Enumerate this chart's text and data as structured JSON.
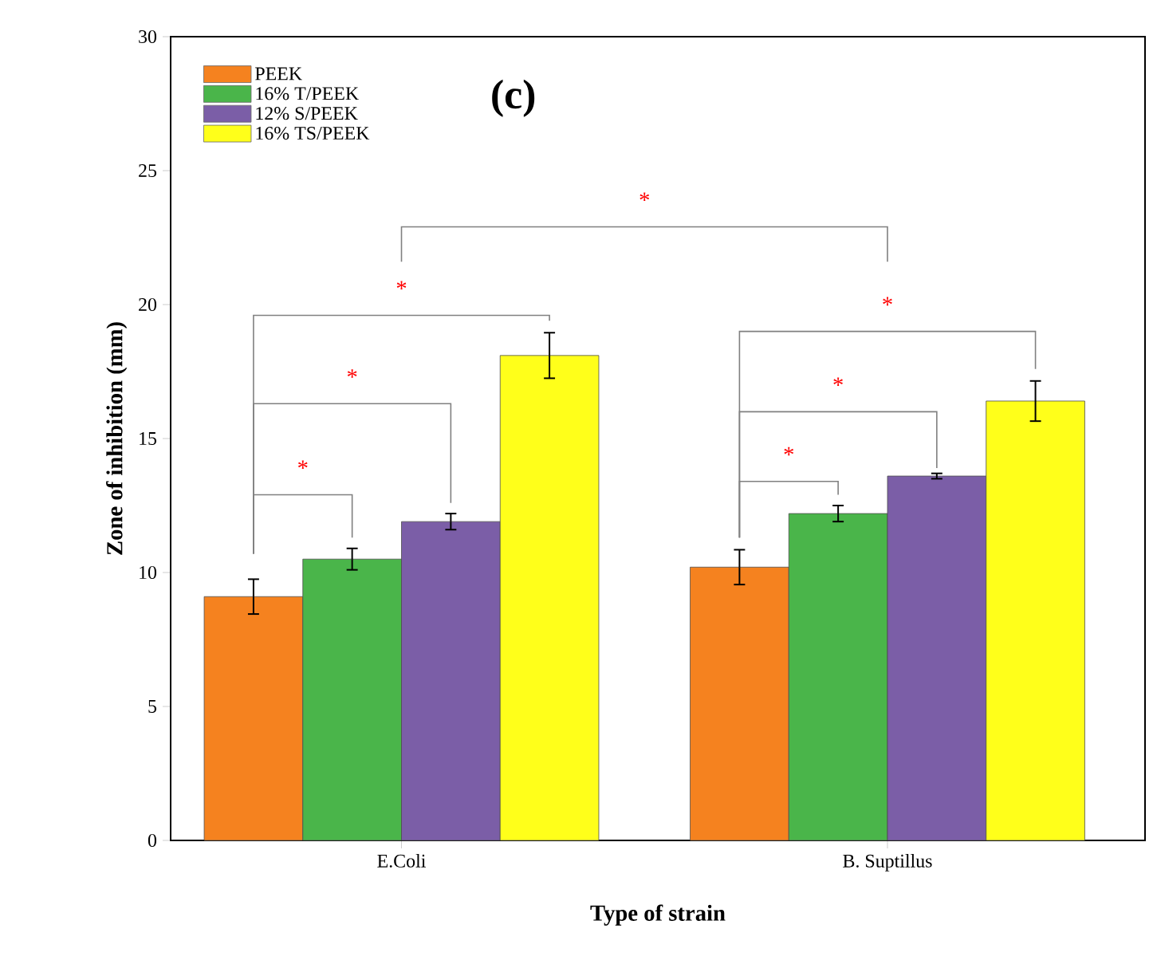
{
  "chart_data": {
    "type": "bar",
    "xlabel": "Type of strain",
    "ylabel": "Zone of inhibition (mm)",
    "categories": [
      "E.Coli",
      "B. Suptillus"
    ],
    "series": [
      {
        "name": "PEEK",
        "color": "#f5821f",
        "values": [
          9.1,
          10.2
        ],
        "errors": [
          0.65,
          0.65
        ]
      },
      {
        "name": "16% T/PEEK",
        "color": "#4ab54a",
        "values": [
          10.5,
          12.2
        ],
        "errors": [
          0.4,
          0.3
        ]
      },
      {
        "name": "12% S/PEEK",
        "color": "#7b5ea7",
        "values": [
          11.9,
          13.6
        ],
        "errors": [
          0.3,
          0.1
        ]
      },
      {
        "name": "16% TS/PEEK",
        "color": "#ffff1a",
        "values": [
          18.1,
          16.4
        ],
        "errors": [
          0.85,
          0.75
        ]
      }
    ],
    "ylim": [
      0,
      30
    ],
    "yticks": [
      0,
      5,
      10,
      15,
      20,
      25,
      30
    ],
    "grid": false,
    "legend": "top left",
    "annotations": [
      "(c)",
      "*",
      "*",
      "*",
      "*",
      "*",
      "*",
      "*"
    ]
  }
}
